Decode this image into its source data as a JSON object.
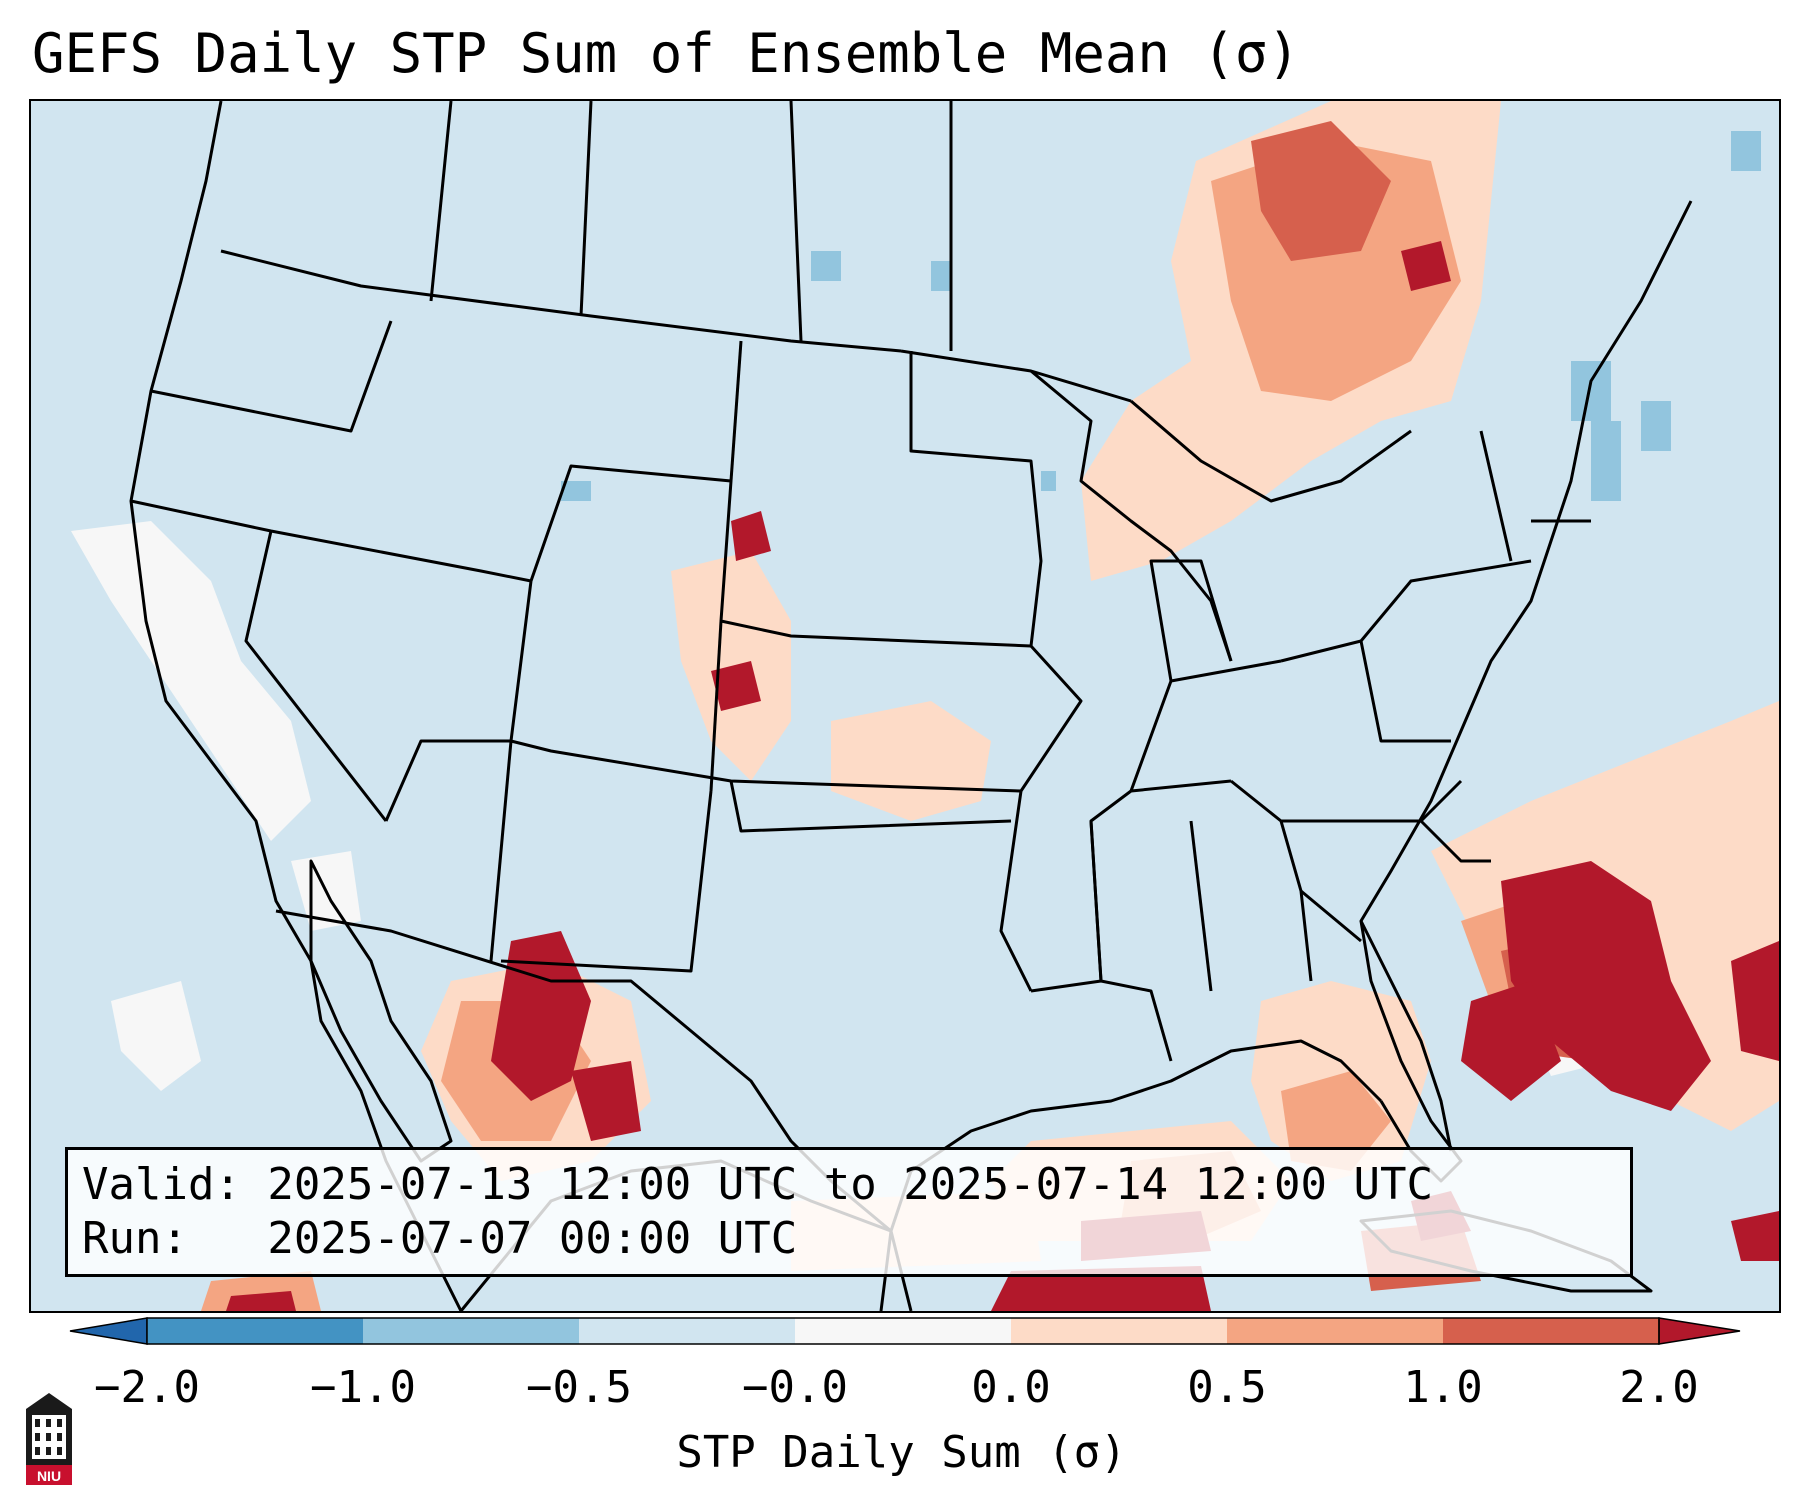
{
  "title": "GEFS Daily STP Sum of Ensemble Mean (σ)",
  "info": {
    "valid_line": "Valid: 2025-07-13 12:00 UTC to 2025-07-14 12:00 UTC",
    "run_line": "Run:   2025-07-07 00:00 UTC"
  },
  "colorbar": {
    "label": "STP Daily Sum (σ)",
    "ticks": [
      "−2.0",
      "−1.0",
      "−0.5",
      "−0.0",
      "0.0",
      "0.5",
      "1.0",
      "2.0"
    ],
    "colors": {
      "below": "#2166ac",
      "bins": [
        "#4393c3",
        "#92c5de",
        "#d1e5f0",
        "#f7f7f7",
        "#fddbc7",
        "#f4a582",
        "#d6604d"
      ],
      "above": "#b2182b"
    }
  },
  "map": {
    "region": "Continental United States, Mexico, Gulf of Mexico, Caribbean",
    "background_color": "#d1e5f0",
    "features": [
      "state-boundaries",
      "coastlines",
      "country-borders"
    ]
  },
  "logo": {
    "text": "NIU",
    "icon": "university-building-icon"
  }
}
